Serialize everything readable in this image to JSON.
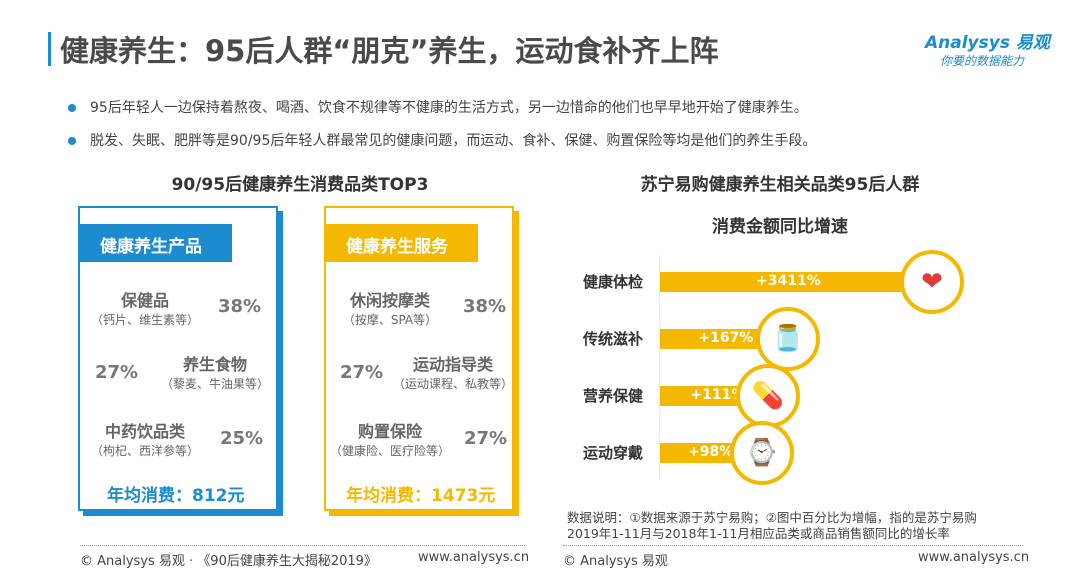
{
  "header": {
    "title": "健康养生：95后人群“朋克”养生，运动食补齐上阵",
    "logo_name": "Analysys 易观",
    "logo_slogan": "你要的数据能力"
  },
  "bullets": [
    "95后年轻人一边保持着熬夜、喝酒、饮食不规律等不健康的生活方式，另一边惜命的他们也早早地开始了健康养生。",
    "脱发、失眠、肥胖等是90/95后年轻人群最常见的健康问题，而运动、食补、保健、购置保险等均是他们的养生手段。"
  ],
  "left_section": {
    "title": "90/95后健康养生消费品类TOP3",
    "products": {
      "header": "健康养生产品",
      "items": [
        {
          "name": "保健品",
          "sub": "（钙片、维生素等）",
          "pct": "38%"
        },
        {
          "name": "养生食物",
          "sub": "（藜麦、牛油果等）",
          "pct": "27%"
        },
        {
          "name": "中药饮品类",
          "sub": "（枸杞、西洋参等）",
          "pct": "25%"
        }
      ],
      "avg": "年均消费：812元",
      "color": "#1c8bd0"
    },
    "services": {
      "header": "健康养生服务",
      "items": [
        {
          "name": "休闲按摩类",
          "sub": "（按摩、SPA等）",
          "pct": "38%"
        },
        {
          "name": "运动指导类",
          "sub": "（运动课程、私教等）",
          "pct": "27%"
        },
        {
          "name": "购置保险",
          "sub": "（健康险、医疗险等）",
          "pct": "27%"
        }
      ],
      "avg": "年均消费：1473元",
      "color": "#f5b800"
    }
  },
  "chart_data": {
    "type": "bar",
    "orientation": "horizontal",
    "title": "苏宁易购健康养生相关品类95后人群",
    "subtitle": "消费金额同比增速",
    "categories": [
      "健康体检",
      "传统滋补",
      "营养保健",
      "运动穿戴"
    ],
    "values": [
      3411,
      167,
      111,
      98
    ],
    "labels": [
      "+3411%",
      "+167%",
      "+111%",
      "+98%"
    ],
    "icons": [
      "heart-rate-icon",
      "tonic-jar-icon",
      "supplement-bottle-icon",
      "smartwatch-icon"
    ],
    "bar_color": "#f5b800",
    "grid": false
  },
  "notes": [
    "数据说明：①数据来源于苏宁易购；②图中百分比为增幅，指的是苏宁易购",
    "2019年1-11月与2018年1-11月相应品类或商品销售额同比的增长率"
  ],
  "footer": {
    "left_source": "© Analysys 易观 · 《90后健康养生大揭秘2019》",
    "left_url": "www.analysys.cn",
    "right_source": "© Analysys 易观",
    "right_url": "www.analysys.cn"
  }
}
